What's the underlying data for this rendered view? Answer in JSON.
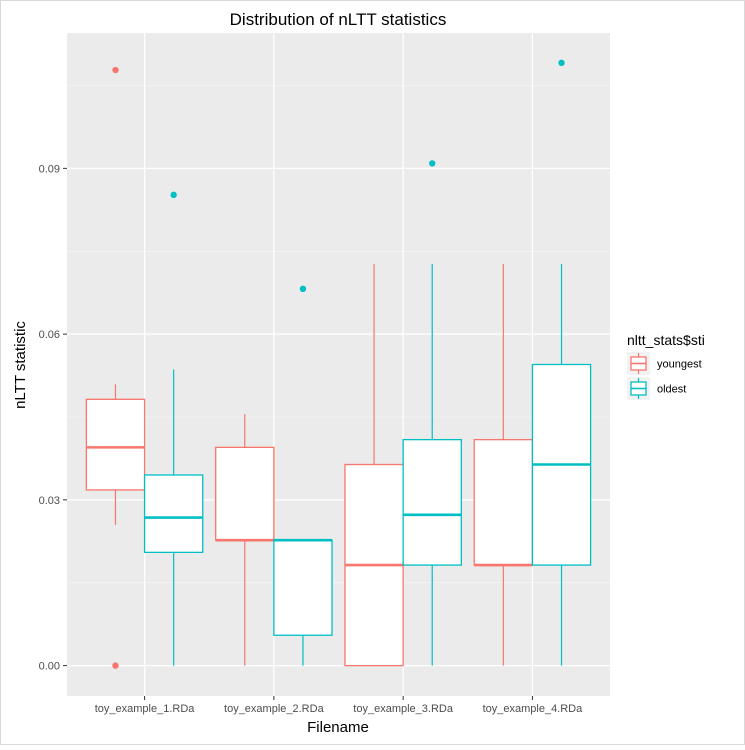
{
  "chart_data": {
    "type": "boxplot",
    "title": "Distribution of nLTT statistics",
    "xlabel": "Filename",
    "ylabel": "nLTT statistic",
    "categories": [
      "toy_example_1.RDa",
      "toy_example_2.RDa",
      "toy_example_3.RDa",
      "toy_example_4.RDa"
    ],
    "y_ticks": [
      0.0,
      0.03,
      0.06,
      0.09
    ],
    "y_tick_labels": [
      "0.00",
      "0.03",
      "0.06",
      "0.09"
    ],
    "ylim": [
      -0.0055,
      0.1145
    ],
    "grid": true,
    "legend": {
      "title": "nltt_stats$sti",
      "placement": "right"
    },
    "series": [
      {
        "name": "youngest",
        "color": "#F8766D",
        "boxes": [
          {
            "lower_whisker": 0.0255,
            "q1": 0.0318,
            "median": 0.0395,
            "q3": 0.0482,
            "upper_whisker": 0.0509,
            "outliers": [
              0.1078,
              0.0
            ]
          },
          {
            "lower_whisker": 0.0,
            "q1": 0.0227,
            "median": 0.0227,
            "q3": 0.0395,
            "upper_whisker": 0.0455,
            "outliers": []
          },
          {
            "lower_whisker": 0.0,
            "q1": 0.0,
            "median": 0.0182,
            "q3": 0.0364,
            "upper_whisker": 0.0727,
            "outliers": []
          },
          {
            "lower_whisker": 0.0,
            "q1": 0.0182,
            "median": 0.0182,
            "q3": 0.0409,
            "upper_whisker": 0.0727,
            "outliers": []
          }
        ]
      },
      {
        "name": "oldest",
        "color": "#00BFC4",
        "boxes": [
          {
            "lower_whisker": 0.0,
            "q1": 0.0205,
            "median": 0.0268,
            "q3": 0.0345,
            "upper_whisker": 0.0536,
            "outliers": [
              0.0852
            ]
          },
          {
            "lower_whisker": 0.0,
            "q1": 0.0055,
            "median": 0.0227,
            "q3": 0.0227,
            "upper_whisker": 0.0227,
            "outliers": [
              0.0682
            ]
          },
          {
            "lower_whisker": 0.0,
            "q1": 0.0182,
            "median": 0.0273,
            "q3": 0.0409,
            "upper_whisker": 0.0727,
            "outliers": [
              0.0909
            ]
          },
          {
            "lower_whisker": 0.0,
            "q1": 0.0182,
            "median": 0.0364,
            "q3": 0.0545,
            "upper_whisker": 0.0727,
            "outliers": [
              0.1091
            ]
          }
        ]
      }
    ]
  }
}
